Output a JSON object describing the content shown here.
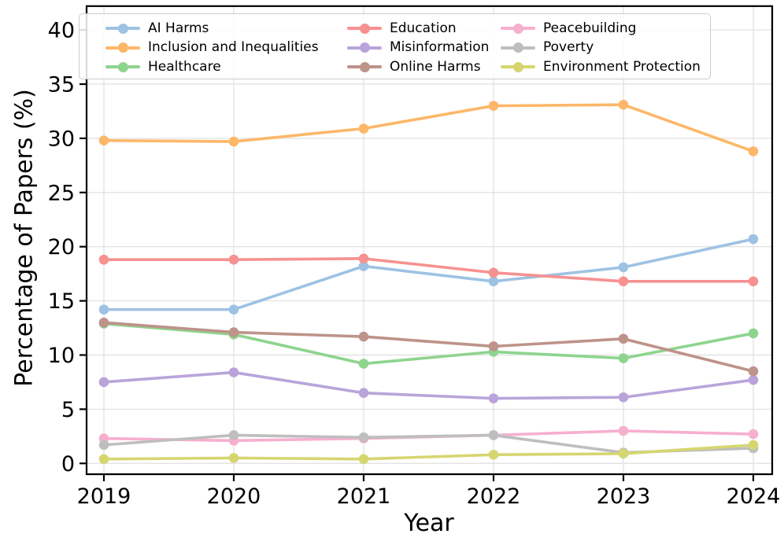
{
  "chart_data": {
    "type": "line",
    "title": "",
    "xlabel": "Year",
    "ylabel": "Percentage of Papers (%)",
    "categories": [
      "2019",
      "2020",
      "2021",
      "2022",
      "2023",
      "2024"
    ],
    "series": [
      {
        "name": "AI Harms",
        "color": "#9ec2e4",
        "values": [
          14.2,
          14.2,
          18.2,
          16.8,
          18.1,
          20.7
        ]
      },
      {
        "name": "Inclusion and Inequalities",
        "color": "#fdb768",
        "values": [
          29.8,
          29.7,
          30.9,
          33.0,
          33.1,
          28.8
        ]
      },
      {
        "name": "Healthcare",
        "color": "#8ed48e",
        "values": [
          12.9,
          11.9,
          9.2,
          10.3,
          9.7,
          12.0
        ]
      },
      {
        "name": "Education",
        "color": "#f79191",
        "values": [
          18.8,
          18.8,
          18.9,
          17.6,
          16.8,
          16.8
        ]
      },
      {
        "name": "Misinformation",
        "color": "#b9a4da",
        "values": [
          7.5,
          8.4,
          6.5,
          6.0,
          6.1,
          7.7
        ]
      },
      {
        "name": "Online Harms",
        "color": "#bd938a",
        "values": [
          13.0,
          12.1,
          11.7,
          10.8,
          11.5,
          8.5
        ]
      },
      {
        "name": "Peacebuilding",
        "color": "#f7afcf",
        "values": [
          2.3,
          2.1,
          2.3,
          2.6,
          3.0,
          2.7
        ]
      },
      {
        "name": "Poverty",
        "color": "#bebebe",
        "values": [
          1.7,
          2.6,
          2.4,
          2.6,
          1.0,
          1.4
        ]
      },
      {
        "name": "Environment Protection",
        "color": "#d6d671",
        "values": [
          0.4,
          0.5,
          0.4,
          0.8,
          0.9,
          1.7
        ]
      }
    ],
    "yticks": [
      0,
      5,
      10,
      15,
      20,
      25,
      30,
      35,
      40
    ],
    "ylim": [
      -1.0,
      42.2
    ],
    "grid": true,
    "legend_position": "top",
    "legend_columns": 3,
    "colors": {
      "grid": "#e3e3e3",
      "spine": "#000000",
      "tick_label": "#000000"
    }
  }
}
